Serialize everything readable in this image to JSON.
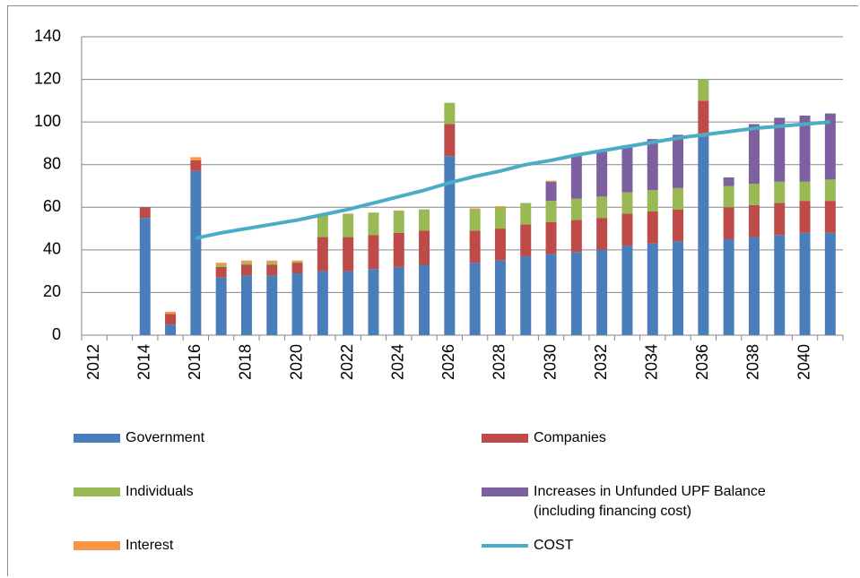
{
  "chart_data": {
    "type": "bar",
    "stacked": true,
    "legend": "bottom",
    "grid": true,
    "categories": [
      "2012",
      null,
      "2014",
      null,
      "2016",
      null,
      "2018",
      null,
      "2020",
      null,
      "2022",
      null,
      "2024",
      null,
      "2026",
      null,
      "2028",
      null,
      "2030",
      null,
      "2032",
      null,
      "2034",
      null,
      "2036",
      null,
      "2038",
      null,
      "2040",
      null
    ],
    "ylim": [
      0,
      140
    ],
    "yticks": [
      0,
      20,
      40,
      60,
      80,
      100,
      120,
      140
    ],
    "series": [
      {
        "name": "Government",
        "color": "#4a7ebb",
        "values": [
          0,
          0,
          55,
          5,
          77,
          27,
          28,
          28,
          29,
          30,
          30,
          31,
          32,
          33,
          84,
          34,
          35,
          37,
          38,
          39,
          40,
          42,
          43,
          44,
          93,
          45,
          46,
          47,
          48,
          48
        ]
      },
      {
        "name": "Companies",
        "color": "#be4b48",
        "values": [
          0,
          0,
          5,
          5,
          5,
          5,
          5,
          5,
          5,
          16,
          16,
          16,
          16,
          16,
          15,
          15,
          15,
          15,
          15,
          15,
          15,
          15,
          15,
          15,
          17,
          15,
          15,
          15,
          15,
          15
        ]
      },
      {
        "name": "Individuals",
        "color": "#98b954",
        "values": [
          0,
          0,
          0,
          0,
          0,
          1,
          1,
          1,
          0.5,
          11,
          11,
          10.5,
          10,
          10,
          10,
          10,
          10,
          10,
          10,
          10,
          10,
          10,
          10,
          10,
          10,
          10,
          10,
          10,
          9,
          10
        ]
      },
      {
        "name": "Increases in Unfunded UPF Balance (including financing cost)",
        "color": "#7d60a0",
        "values": [
          0,
          0,
          0,
          0,
          0,
          0,
          0,
          0,
          0,
          0,
          0,
          0,
          0,
          0,
          0,
          0,
          0,
          0,
          9,
          20,
          21,
          22,
          24,
          25,
          0,
          4,
          28,
          30,
          31,
          31
        ]
      },
      {
        "name": "Interest",
        "color": "#f79646",
        "values": [
          0,
          0,
          0,
          1,
          1.5,
          1,
          1,
          1,
          0.5,
          0,
          0,
          0,
          0.5,
          0,
          0,
          0.5,
          0.5,
          0,
          0.5,
          0,
          0,
          0,
          0,
          0,
          0,
          0,
          0,
          0,
          0,
          0
        ]
      },
      {
        "name": "COST",
        "type": "line",
        "color": "#4bacc6",
        "values": [
          null,
          null,
          null,
          null,
          45.5,
          48,
          50,
          52,
          54,
          56.5,
          59,
          62,
          65,
          68,
          71.5,
          74.5,
          77,
          80,
          82,
          84.5,
          86.5,
          88.5,
          90.5,
          92.5,
          94,
          95.5,
          97,
          98,
          99,
          100
        ]
      }
    ]
  }
}
